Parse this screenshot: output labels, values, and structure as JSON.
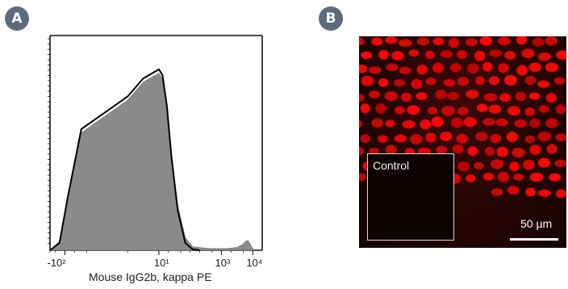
{
  "panels": {
    "a": {
      "badge": "A"
    },
    "b": {
      "badge": "B"
    }
  },
  "chart_data": {
    "type": "area",
    "title": "",
    "xlabel": "Mouse IgG2b, kappa PE",
    "ylabel": "",
    "x_scale": "biexponential",
    "x_tick_labels": [
      "-10²",
      "10¹",
      "10³",
      "10⁴"
    ],
    "series": [
      {
        "name": "",
        "style": "filled-gray",
        "x": [
          -300,
          -150,
          -80,
          -30,
          0,
          5,
          10,
          13,
          18,
          25,
          40,
          70,
          120,
          200,
          400,
          800,
          1500,
          3000,
          4500,
          6000,
          7000,
          8000,
          9500,
          11000
        ],
        "y": [
          0,
          0.05,
          0.3,
          0.65,
          0.83,
          0.93,
          0.98,
          0.95,
          0.8,
          0.55,
          0.25,
          0.07,
          0.02,
          0.015,
          0.01,
          0.01,
          0.01,
          0.015,
          0.03,
          0.05,
          0.055,
          0.04,
          0.015,
          0
        ]
      },
      {
        "name": "",
        "style": "black-outline",
        "x": [
          -300,
          -150,
          -80,
          -30,
          0,
          5,
          10,
          13,
          18,
          25,
          40,
          70,
          120,
          200
        ],
        "y": [
          0,
          0.04,
          0.3,
          0.67,
          0.85,
          0.95,
          1.0,
          0.97,
          0.8,
          0.52,
          0.22,
          0.04,
          0.005,
          0
        ]
      }
    ],
    "grid": false
  },
  "image_panel": {
    "inset_label": "Control",
    "scale_label": "50 µm",
    "colors": {
      "nuclei": "#e00000",
      "background": "#2a0505"
    }
  }
}
